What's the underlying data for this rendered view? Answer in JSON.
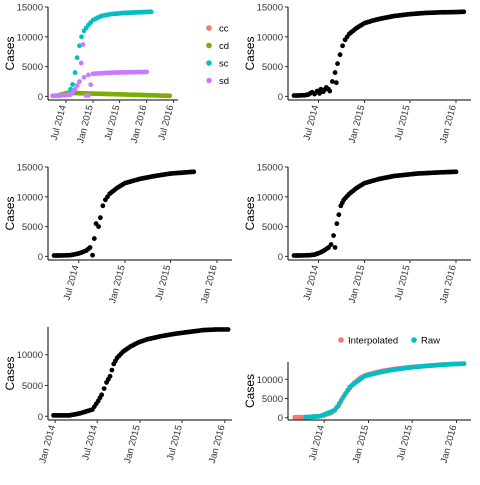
{
  "chart_data": [
    {
      "type": "scatter",
      "ylabel": "Cases",
      "x_ticks": [
        "Jul 2014",
        "Jan 2015",
        "Jul 2015",
        "Jan 2016",
        "Jul 2016"
      ],
      "y_ticks": [
        0,
        5000,
        10000,
        15000
      ],
      "xlim": [
        "2014-03-01",
        "2016-08-01"
      ],
      "ylim": [
        -600,
        15000
      ],
      "legend": {
        "position": "right",
        "entries": [
          "cc",
          "cd",
          "sc",
          "sd"
        ]
      },
      "series": [
        {
          "name": "cc",
          "color": "#F8766D",
          "points": [
            [
              "2014-05-25",
              150
            ],
            [
              "2014-06-05",
              200
            ],
            [
              "2014-06-20",
              250
            ]
          ]
        },
        {
          "name": "cd",
          "color": "#7CAE00",
          "points": [
            [
              "2014-05-10",
              100
            ],
            [
              "2014-05-25",
              300
            ],
            [
              "2014-06-10",
              400
            ],
            [
              "2014-06-25",
              500
            ],
            [
              "2014-07-10",
              600
            ],
            [
              "2016-06-05",
              100
            ]
          ]
        },
        {
          "name": "sc",
          "color": "#00BFC4",
          "points": [
            [
              "2014-08-01",
              1200
            ],
            [
              "2014-08-15",
              2000
            ],
            [
              "2014-09-01",
              4000
            ],
            [
              "2014-09-15",
              6500
            ],
            [
              "2014-10-01",
              8500
            ],
            [
              "2014-10-15",
              10000
            ],
            [
              "2014-11-01",
              11000
            ],
            [
              "2014-12-01",
              12000
            ],
            [
              "2015-01-01",
              12800
            ],
            [
              "2015-02-01",
              13200
            ],
            [
              "2015-03-01",
              13500
            ],
            [
              "2015-05-01",
              13800
            ],
            [
              "2015-08-01",
              14000
            ],
            [
              "2015-11-01",
              14100
            ],
            [
              "2016-02-01",
              14200
            ]
          ]
        },
        {
          "name": "sd",
          "color": "#C77CFF",
          "points": [
            [
              "2014-04-01",
              100
            ],
            [
              "2014-05-01",
              150
            ],
            [
              "2014-08-01",
              300
            ],
            [
              "2014-09-01",
              1200
            ],
            [
              "2014-10-01",
              2500
            ],
            [
              "2014-10-25",
              8700
            ],
            [
              "2014-11-01",
              3200
            ],
            [
              "2014-12-01",
              3600
            ],
            [
              "2015-01-01",
              3800
            ],
            [
              "2015-03-01",
              3900
            ],
            [
              "2015-06-01",
              4000
            ],
            [
              "2015-09-01",
              4050
            ],
            [
              "2016-01-01",
              4100
            ],
            [
              "2014-11-15",
              150
            ],
            [
              "2014-12-01",
              150
            ]
          ]
        }
      ]
    },
    {
      "type": "scatter",
      "ylabel": "Cases",
      "x_ticks": [
        "Jul 2014",
        "Jan 2015",
        "Jul 2015",
        "Jan 2016"
      ],
      "y_ticks": [
        0,
        5000,
        10000,
        15000
      ],
      "xlim": [
        "2014-03-01",
        "2016-03-01"
      ],
      "ylim": [
        -600,
        15000
      ],
      "series": [
        {
          "name": "",
          "color": "#000000",
          "points": [
            [
              "2014-03-25",
              150
            ],
            [
              "2014-04-10",
              150
            ],
            [
              "2014-05-05",
              200
            ],
            [
              "2014-05-20",
              300
            ],
            [
              "2014-06-05",
              700
            ],
            [
              "2014-06-15",
              400
            ],
            [
              "2014-06-25",
              900
            ],
            [
              "2014-07-05",
              500
            ],
            [
              "2014-07-10",
              1200
            ],
            [
              "2014-07-20",
              800
            ],
            [
              "2014-08-01",
              1500
            ],
            [
              "2014-08-10",
              1200
            ],
            [
              "2014-08-15",
              900
            ],
            [
              "2014-08-25",
              2500
            ],
            [
              "2014-09-05",
              4000
            ],
            [
              "2014-09-10",
              2300
            ],
            [
              "2014-09-15",
              5500
            ],
            [
              "2014-09-25",
              7000
            ],
            [
              "2014-10-05",
              8500
            ],
            [
              "2014-10-15",
              9500
            ],
            [
              "2014-11-01",
              10500
            ],
            [
              "2014-12-01",
              11500
            ],
            [
              "2015-01-01",
              12300
            ],
            [
              "2015-02-01",
              12700
            ],
            [
              "2015-03-01",
              13000
            ],
            [
              "2015-05-01",
              13500
            ],
            [
              "2015-07-01",
              13800
            ],
            [
              "2015-09-01",
              14000
            ],
            [
              "2015-11-01",
              14100
            ],
            [
              "2016-01-01",
              14150
            ],
            [
              "2016-02-01",
              14200
            ]
          ]
        }
      ]
    },
    {
      "type": "scatter",
      "ylabel": "Cases",
      "x_ticks": [
        "Jul 2014",
        "Jan 2015",
        "Jul 2015",
        "Jan 2016"
      ],
      "y_ticks": [
        0,
        5000,
        10000,
        15000
      ],
      "xlim": [
        "2014-03-01",
        "2016-03-01"
      ],
      "ylim": [
        -600,
        15000
      ],
      "series": [
        {
          "name": "",
          "color": "#000000",
          "points": [
            [
              "2014-03-25",
              150
            ],
            [
              "2014-04-15",
              150
            ],
            [
              "2014-05-25",
              200
            ],
            [
              "2014-06-10",
              300
            ],
            [
              "2014-07-01",
              500
            ],
            [
              "2014-07-15",
              700
            ],
            [
              "2014-08-01",
              1000
            ],
            [
              "2014-08-15",
              1500
            ],
            [
              "2014-08-25",
              200
            ],
            [
              "2014-09-01",
              3000
            ],
            [
              "2014-09-08",
              5500
            ],
            [
              "2014-09-18",
              5000
            ],
            [
              "2014-09-25",
              6500
            ],
            [
              "2014-10-05",
              8500
            ],
            [
              "2014-10-15",
              9500
            ],
            [
              "2014-11-01",
              10500
            ],
            [
              "2014-12-01",
              11500
            ],
            [
              "2015-01-01",
              12300
            ],
            [
              "2015-03-01",
              13000
            ],
            [
              "2015-05-01",
              13500
            ],
            [
              "2015-07-01",
              13900
            ],
            [
              "2015-09-01",
              14100
            ],
            [
              "2015-10-01",
              14200
            ]
          ]
        }
      ]
    },
    {
      "type": "scatter",
      "ylabel": "Cases",
      "x_ticks": [
        "Jul 2014",
        "Jan 2015",
        "Jul 2015",
        "Jan 2016"
      ],
      "y_ticks": [
        0,
        5000,
        10000,
        15000
      ],
      "xlim": [
        "2014-03-01",
        "2016-03-01"
      ],
      "ylim": [
        -600,
        15000
      ],
      "series": [
        {
          "name": "",
          "color": "#000000",
          "points": [
            [
              "2014-03-25",
              150
            ],
            [
              "2014-04-15",
              150
            ],
            [
              "2014-05-25",
              200
            ],
            [
              "2014-06-15",
              300
            ],
            [
              "2014-07-05",
              600
            ],
            [
              "2014-07-20",
              900
            ],
            [
              "2014-08-10",
              1500
            ],
            [
              "2014-08-20",
              2000
            ],
            [
              "2014-08-30",
              3500
            ],
            [
              "2014-09-05",
              1500
            ],
            [
              "2014-09-12",
              5500
            ],
            [
              "2014-09-20",
              7000
            ],
            [
              "2014-09-28",
              8500
            ],
            [
              "2014-10-10",
              9500
            ],
            [
              "2014-11-01",
              10500
            ],
            [
              "2014-12-01",
              11500
            ],
            [
              "2015-01-01",
              12300
            ],
            [
              "2015-03-01",
              13000
            ],
            [
              "2015-05-01",
              13500
            ],
            [
              "2015-08-01",
              13900
            ],
            [
              "2015-11-01",
              14100
            ],
            [
              "2016-01-01",
              14200
            ]
          ]
        }
      ]
    },
    {
      "type": "scatter",
      "ylabel": "Cases",
      "x_ticks": [
        "Jan 2014",
        "Jul 2014",
        "Jan 2015",
        "Jul 2015",
        "Jan 2016"
      ],
      "y_ticks": [
        0,
        5000,
        10000
      ],
      "xlim": [
        "2013-12-01",
        "2016-02-01"
      ],
      "ylim": [
        -600,
        14500
      ],
      "series": [
        {
          "name": "",
          "color": "#000000",
          "points": [
            [
              "2013-12-25",
              150
            ],
            [
              "2014-03-01",
              150
            ],
            [
              "2014-03-25",
              300
            ],
            [
              "2014-04-20",
              500
            ],
            [
              "2014-05-15",
              800
            ],
            [
              "2014-06-10",
              1100
            ],
            [
              "2014-07-05",
              2500
            ],
            [
              "2014-07-20",
              3500
            ],
            [
              "2014-08-10",
              5500
            ],
            [
              "2014-08-25",
              6500
            ],
            [
              "2014-09-10",
              8500
            ],
            [
              "2014-09-25",
              9500
            ],
            [
              "2014-10-20",
              10500
            ],
            [
              "2014-11-20",
              11300
            ],
            [
              "2014-12-25",
              12000
            ],
            [
              "2015-02-01",
              12500
            ],
            [
              "2015-04-01",
              13000
            ],
            [
              "2015-06-01",
              13400
            ],
            [
              "2015-08-01",
              13700
            ],
            [
              "2015-10-01",
              14000
            ],
            [
              "2015-12-01",
              14100
            ],
            [
              "2016-01-15",
              14100
            ]
          ]
        }
      ]
    },
    {
      "type": "scatter",
      "ylabel": "Cases",
      "x_ticks": [
        "Jul 2014",
        "Jan 2015",
        "Jul 2015",
        "Jan 2016"
      ],
      "y_ticks": [
        0,
        5000,
        10000
      ],
      "xlim": [
        "2014-02-01",
        "2016-03-01"
      ],
      "ylim": [
        -600,
        14500
      ],
      "legend": {
        "position": "top",
        "entries": [
          "Interpolated",
          "Raw"
        ]
      },
      "series": [
        {
          "name": "Interpolated",
          "color": "#F8766D",
          "points": [
            [
              "2014-03-01",
              100
            ],
            [
              "2014-04-01",
              120
            ],
            [
              "2014-05-01",
              180
            ],
            [
              "2014-06-01",
              300
            ],
            [
              "2014-07-01",
              600
            ],
            [
              "2014-08-01",
              1300
            ],
            [
              "2014-09-01",
              3200
            ],
            [
              "2014-09-15",
              5000
            ],
            [
              "2014-10-01",
              6500
            ],
            [
              "2014-11-01",
              9000
            ],
            [
              "2014-12-01",
              10500
            ],
            [
              "2015-01-01",
              11300
            ],
            [
              "2015-03-01",
              12200
            ],
            [
              "2015-05-01",
              12800
            ],
            [
              "2015-07-01",
              13200
            ],
            [
              "2015-09-01",
              13500
            ],
            [
              "2015-11-01",
              13800
            ],
            [
              "2016-01-01",
              14000
            ],
            [
              "2016-02-01",
              14100
            ]
          ]
        },
        {
          "name": "Raw",
          "color": "#00BFC4",
          "points": [
            [
              "2014-04-15",
              150
            ],
            [
              "2014-06-15",
              400
            ],
            [
              "2014-08-15",
              2000
            ],
            [
              "2014-10-15",
              8000
            ],
            [
              "2014-12-15",
              10800
            ],
            [
              "2015-02-15",
              11800
            ],
            [
              "2015-04-15",
              12500
            ],
            [
              "2015-06-15",
              13000
            ],
            [
              "2015-08-15",
              13400
            ],
            [
              "2015-10-15",
              13700
            ],
            [
              "2015-12-15",
              13950
            ],
            [
              "2016-02-01",
              14050
            ]
          ]
        }
      ]
    }
  ]
}
